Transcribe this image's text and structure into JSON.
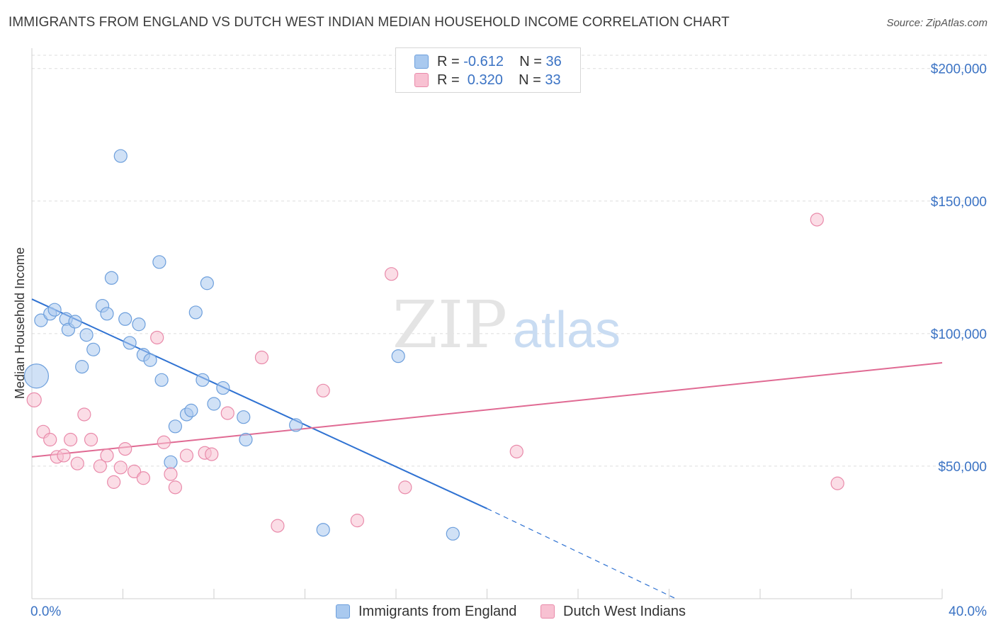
{
  "header": {
    "title": "IMMIGRANTS FROM ENGLAND VS DUTCH WEST INDIAN MEDIAN HOUSEHOLD INCOME CORRELATION CHART",
    "source": "Source: ZipAtlas.com"
  },
  "watermark": {
    "zip": "ZIP",
    "atlas": "atlas"
  },
  "legend": {
    "rows": [
      {
        "r_label": "R = ",
        "r_value": "-0.612",
        "n_label": "N = ",
        "n_value": "36",
        "color": "#a9c9ef",
        "stroke": "#6d9fdc"
      },
      {
        "r_label": "R = ",
        "r_value": " 0.320",
        "n_label": "N = ",
        "n_value": "33",
        "color": "#f8c1d2",
        "stroke": "#e98aaa"
      }
    ]
  },
  "bottom_legend": [
    {
      "label": "Immigrants from England",
      "color": "#a9c9ef",
      "stroke": "#6d9fdc"
    },
    {
      "label": "Dutch West Indians",
      "color": "#f8c1d2",
      "stroke": "#e98aaa"
    }
  ],
  "chart_data": {
    "type": "scatter",
    "ylabel": "Median Household Income",
    "xlim": [
      0,
      40
    ],
    "ylim": [
      0,
      205000
    ],
    "x_tick_labels": [
      {
        "value": 0,
        "label": "0.0%"
      },
      {
        "value": 40,
        "label": "40.0%"
      }
    ],
    "y_ticks": [
      {
        "value": 50000,
        "label": "$50,000"
      },
      {
        "value": 100000,
        "label": "$100,000"
      },
      {
        "value": 150000,
        "label": "$150,000"
      },
      {
        "value": 200000,
        "label": "$200,000"
      }
    ],
    "grid": true,
    "legend_position": "top-center",
    "series": [
      {
        "name": "Immigrants from England",
        "color": "#a9c9ef",
        "stroke": "#6d9fdc",
        "trend_color": "#2f72d2",
        "trend": {
          "x_start": 0,
          "y_start": 113000,
          "x_solid_end": 20,
          "y_solid_end": 34000,
          "x_dash_end": 28.3,
          "y_dash_end": 0
        },
        "points": [
          [
            0.2,
            84000,
            17
          ],
          [
            0.4,
            105000,
            9
          ],
          [
            0.8,
            107500,
            9
          ],
          [
            1.0,
            109000,
            9
          ],
          [
            1.5,
            105500,
            9
          ],
          [
            1.6,
            101500,
            9
          ],
          [
            1.9,
            104500,
            9
          ],
          [
            2.2,
            87500,
            9
          ],
          [
            2.4,
            99500,
            9
          ],
          [
            2.7,
            94000,
            9
          ],
          [
            3.1,
            110500,
            9
          ],
          [
            3.3,
            107500,
            9
          ],
          [
            3.5,
            121000,
            9
          ],
          [
            3.9,
            167000,
            9
          ],
          [
            4.1,
            105500,
            9
          ],
          [
            4.3,
            96500,
            9
          ],
          [
            4.7,
            103500,
            9
          ],
          [
            4.9,
            92000,
            9
          ],
          [
            5.2,
            90000,
            9
          ],
          [
            5.6,
            127000,
            9
          ],
          [
            5.7,
            82500,
            9
          ],
          [
            6.1,
            51500,
            9
          ],
          [
            6.3,
            65000,
            9
          ],
          [
            6.8,
            69500,
            9
          ],
          [
            7.0,
            71000,
            9
          ],
          [
            7.2,
            108000,
            9
          ],
          [
            7.5,
            82500,
            9
          ],
          [
            7.7,
            119000,
            9
          ],
          [
            8.0,
            73500,
            9
          ],
          [
            8.4,
            79500,
            9
          ],
          [
            9.3,
            68500,
            9
          ],
          [
            9.4,
            60000,
            9
          ],
          [
            11.6,
            65500,
            9
          ],
          [
            12.8,
            26000,
            9
          ],
          [
            16.1,
            91500,
            9
          ],
          [
            18.5,
            24500,
            9
          ]
        ]
      },
      {
        "name": "Dutch West Indians",
        "color": "#f8c1d2",
        "stroke": "#e98aaa",
        "trend_color": "#e06a93",
        "trend": {
          "x_start": 0,
          "y_start": 53500,
          "x_end": 40,
          "y_end": 89000
        },
        "points": [
          [
            0.1,
            75000,
            10
          ],
          [
            0.5,
            63000,
            9
          ],
          [
            0.8,
            60000,
            9
          ],
          [
            1.1,
            53500,
            9
          ],
          [
            1.4,
            54000,
            9
          ],
          [
            1.7,
            60000,
            9
          ],
          [
            2.0,
            51000,
            9
          ],
          [
            2.3,
            69500,
            9
          ],
          [
            2.6,
            60000,
            9
          ],
          [
            3.0,
            50000,
            9
          ],
          [
            3.3,
            54000,
            9
          ],
          [
            3.6,
            44000,
            9
          ],
          [
            3.9,
            49500,
            9
          ],
          [
            4.1,
            56500,
            9
          ],
          [
            4.5,
            48000,
            9
          ],
          [
            4.9,
            45500,
            9
          ],
          [
            5.5,
            98500,
            9
          ],
          [
            5.8,
            59000,
            9
          ],
          [
            6.1,
            47000,
            9
          ],
          [
            6.3,
            42000,
            9
          ],
          [
            6.8,
            54000,
            9
          ],
          [
            7.6,
            55000,
            9
          ],
          [
            7.9,
            54500,
            9
          ],
          [
            8.6,
            70000,
            9
          ],
          [
            10.1,
            91000,
            9
          ],
          [
            10.8,
            27500,
            9
          ],
          [
            12.8,
            78500,
            9
          ],
          [
            14.3,
            29500,
            9
          ],
          [
            15.8,
            122500,
            9
          ],
          [
            16.4,
            42000,
            9
          ],
          [
            21.3,
            55500,
            9
          ],
          [
            34.5,
            143000,
            9
          ],
          [
            35.4,
            43500,
            9
          ]
        ]
      }
    ]
  }
}
